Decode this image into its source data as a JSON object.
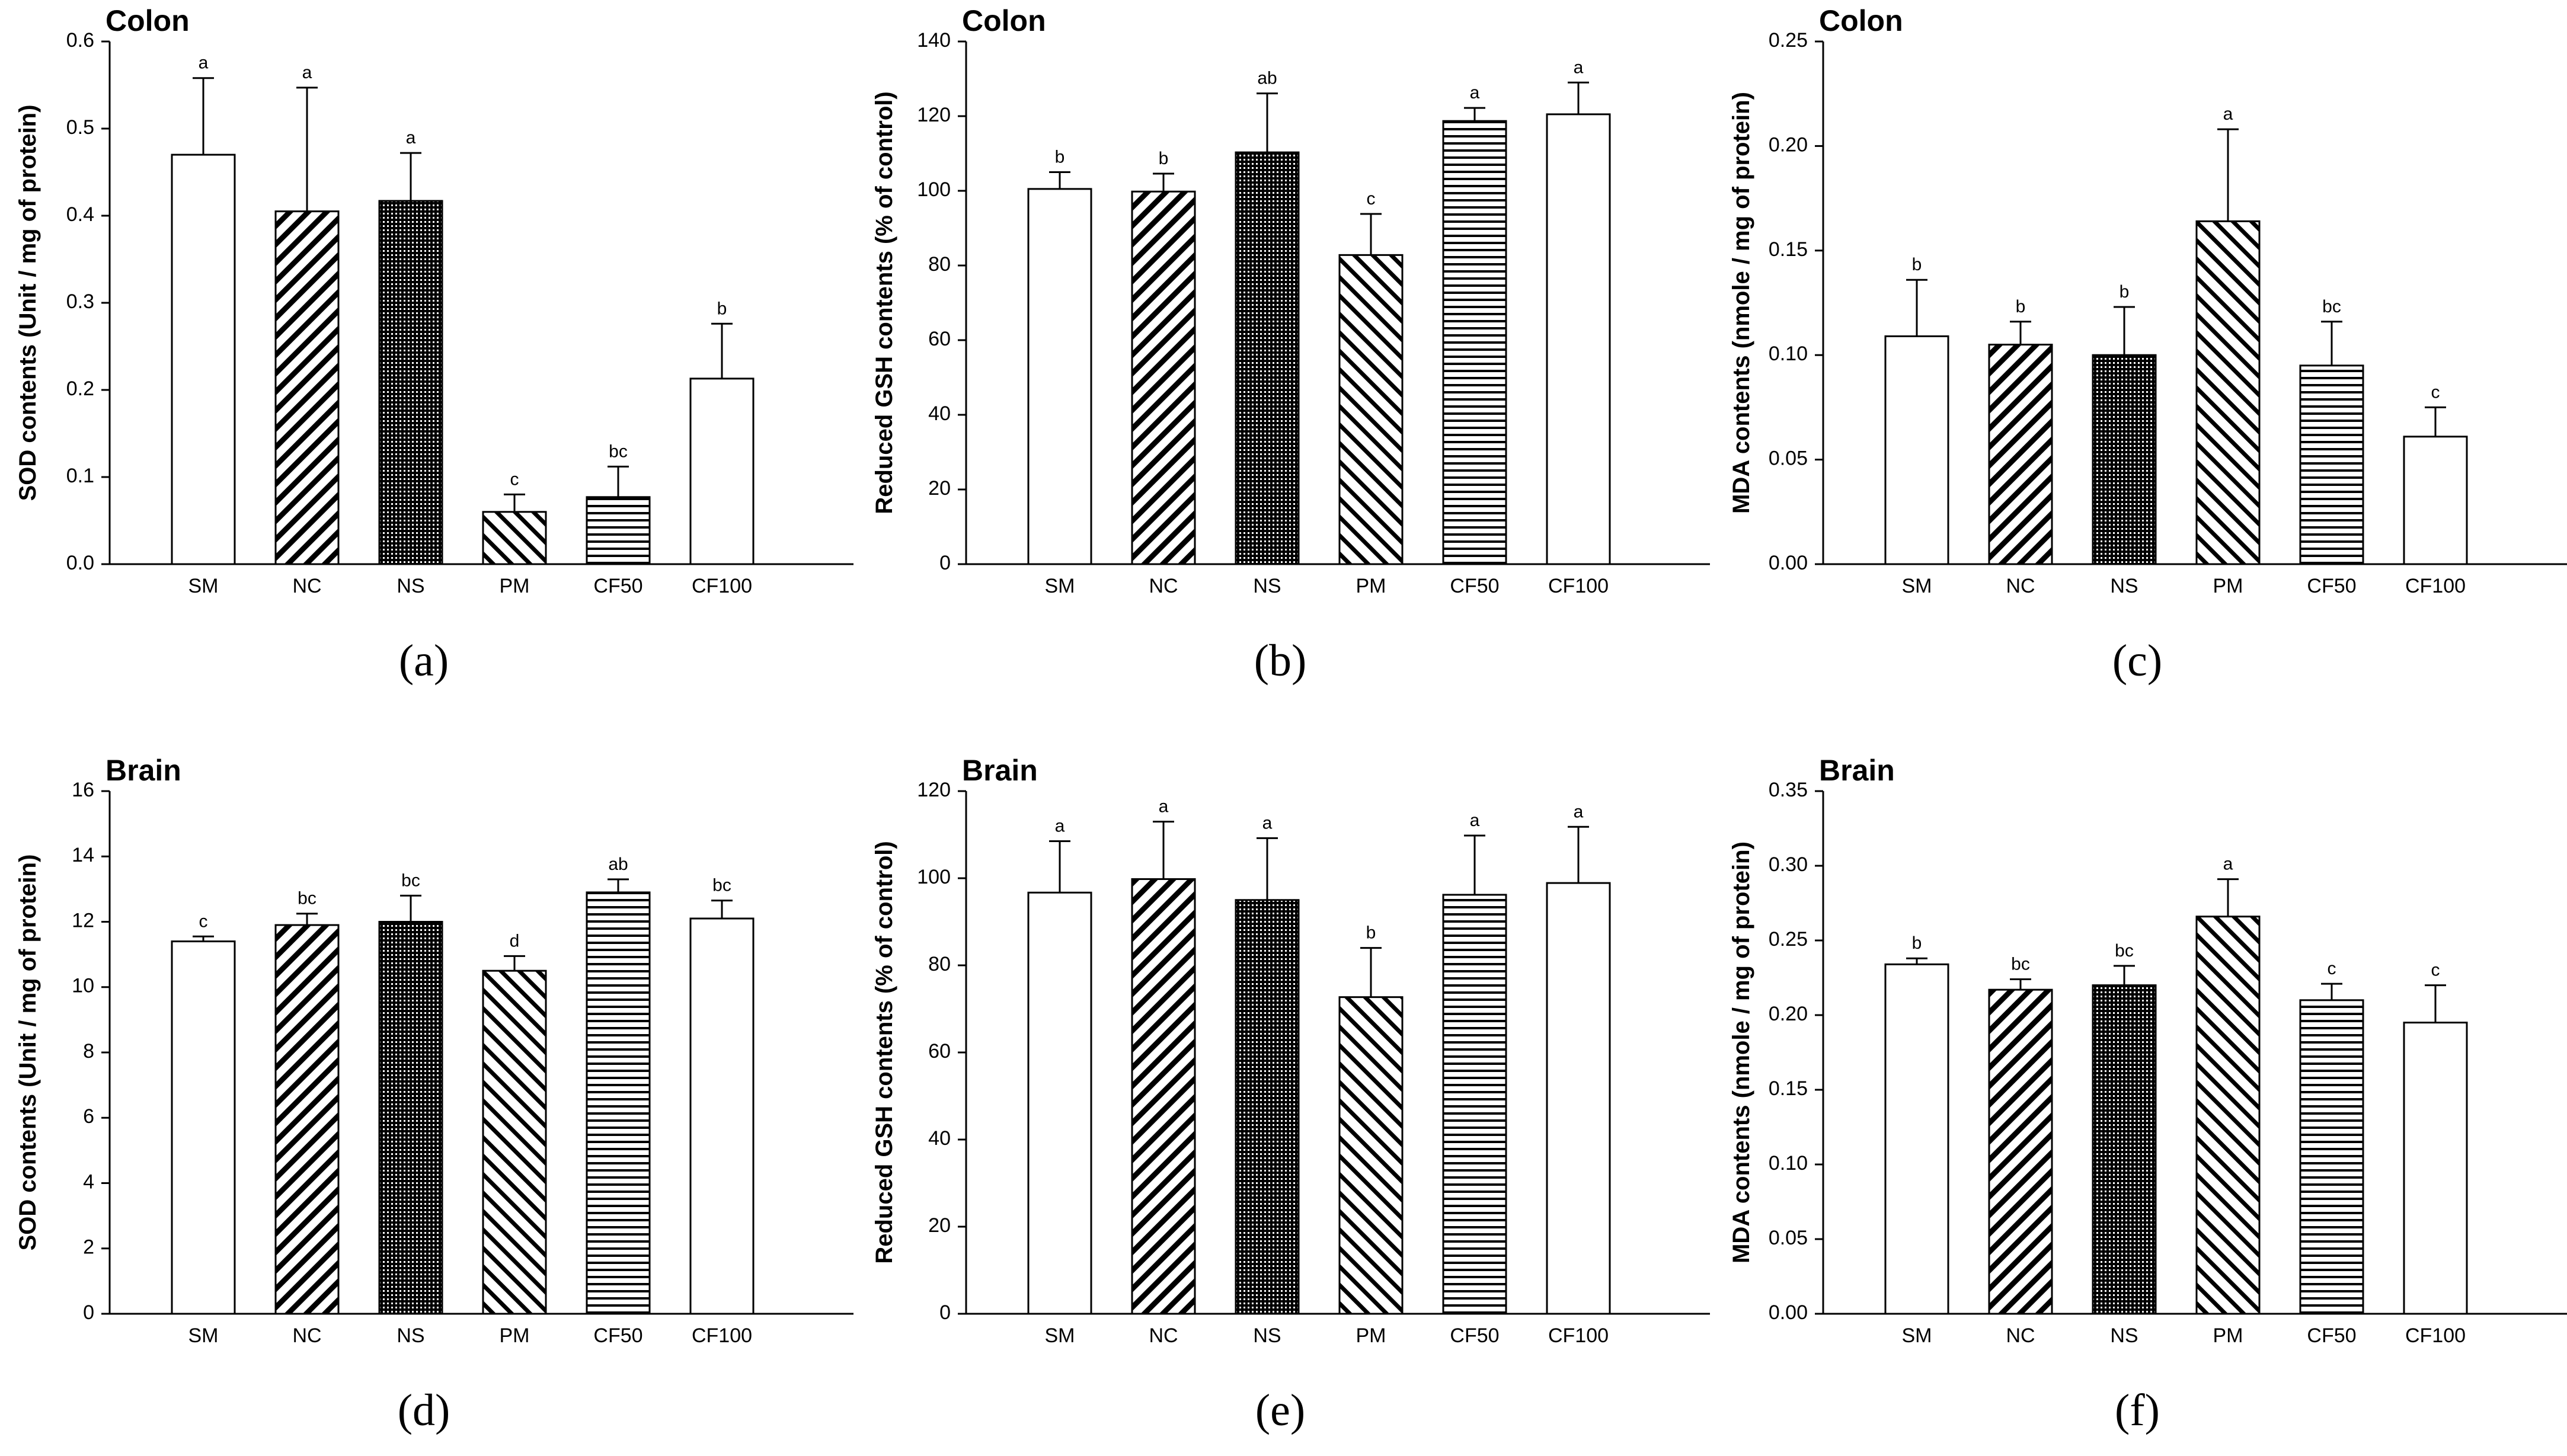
{
  "figure": {
    "background": "#ffffff",
    "bar_stroke": "#000000"
  },
  "chart_data": [
    {
      "id": "a",
      "type": "bar",
      "panel_label": "(a)",
      "title": "Colon",
      "ylabel": "SOD contents (Unit / mg of protein)",
      "xlabel": "",
      "ylim": [
        0,
        0.6
      ],
      "ytick_labels": [
        "0.0",
        "0.1",
        "0.2",
        "0.3",
        "0.4",
        "0.5",
        "0.6"
      ],
      "categories": [
        "SM",
        "NC",
        "NS",
        "PM",
        "CF50",
        "CF100"
      ],
      "patterns": [
        "none",
        "diag-fwd",
        "crosshatch",
        "diag-back",
        "horizontal",
        "none"
      ],
      "values": [
        0.47,
        0.405,
        0.417,
        0.06,
        0.077,
        0.213
      ],
      "errors": [
        0.088,
        0.142,
        0.055,
        0.02,
        0.035,
        0.063
      ],
      "letters": [
        "a",
        "a",
        "a",
        "c",
        "bc",
        "b"
      ]
    },
    {
      "id": "b",
      "type": "bar",
      "panel_label": "(b)",
      "title": "Colon",
      "ylabel": "Reduced GSH contents (% of control)",
      "xlabel": "",
      "ylim": [
        0,
        140
      ],
      "ytick_labels": [
        "0",
        "20",
        "40",
        "60",
        "80",
        "100",
        "120",
        "140"
      ],
      "categories": [
        "SM",
        "NC",
        "NS",
        "PM",
        "CF50",
        "CF100"
      ],
      "patterns": [
        "none",
        "diag-fwd",
        "crosshatch",
        "diag-back",
        "horizontal",
        "none"
      ],
      "values": [
        100.5,
        99.8,
        110.3,
        82.8,
        118.7,
        120.5
      ],
      "errors": [
        4.5,
        4.8,
        15.8,
        11.0,
        3.5,
        8.5
      ],
      "letters": [
        "b",
        "b",
        "ab",
        "c",
        "a",
        "a"
      ]
    },
    {
      "id": "c",
      "type": "bar",
      "panel_label": "(c)",
      "title": "Colon",
      "ylabel": "MDA contents (nmole / mg of protein)",
      "xlabel": "",
      "ylim": [
        0,
        0.25
      ],
      "ytick_labels": [
        "0.00",
        "0.05",
        "0.10",
        "0.15",
        "0.20",
        "0.25"
      ],
      "categories": [
        "SM",
        "NC",
        "NS",
        "PM",
        "CF50",
        "CF100"
      ],
      "patterns": [
        "none",
        "diag-fwd",
        "crosshatch",
        "diag-back",
        "horizontal",
        "none"
      ],
      "values": [
        0.109,
        0.105,
        0.1,
        0.164,
        0.095,
        0.061
      ],
      "errors": [
        0.027,
        0.011,
        0.023,
        0.044,
        0.021,
        0.014
      ],
      "letters": [
        "b",
        "b",
        "b",
        "a",
        "bc",
        "c"
      ]
    },
    {
      "id": "d",
      "type": "bar",
      "panel_label": "(d)",
      "title": "Brain",
      "ylabel": "SOD contents (Unit / mg of protein)",
      "xlabel": "",
      "ylim": [
        0,
        16
      ],
      "ytick_labels": [
        "0",
        "2",
        "4",
        "6",
        "8",
        "10",
        "12",
        "14",
        "16"
      ],
      "categories": [
        "SM",
        "NC",
        "NS",
        "PM",
        "CF50",
        "CF100"
      ],
      "patterns": [
        "none",
        "diag-fwd",
        "crosshatch",
        "diag-back",
        "horizontal",
        "none"
      ],
      "values": [
        11.4,
        11.9,
        12.0,
        10.5,
        12.9,
        12.1
      ],
      "errors": [
        0.15,
        0.35,
        0.8,
        0.45,
        0.4,
        0.55
      ],
      "letters": [
        "c",
        "bc",
        "bc",
        "d",
        "ab",
        "bc"
      ]
    },
    {
      "id": "e",
      "type": "bar",
      "panel_label": "(e)",
      "title": "Brain",
      "ylabel": "Reduced GSH contents (% of control)",
      "xlabel": "",
      "ylim": [
        0,
        120
      ],
      "ytick_labels": [
        "0",
        "20",
        "40",
        "60",
        "80",
        "100",
        "120"
      ],
      "categories": [
        "SM",
        "NC",
        "NS",
        "PM",
        "CF50",
        "CF100"
      ],
      "patterns": [
        "none",
        "diag-fwd",
        "crosshatch",
        "diag-back",
        "horizontal",
        "none"
      ],
      "values": [
        96.7,
        99.8,
        95.0,
        72.7,
        96.2,
        98.9
      ],
      "errors": [
        11.8,
        13.2,
        14.2,
        11.3,
        13.6,
        12.9
      ],
      "letters": [
        "a",
        "a",
        "a",
        "b",
        "a",
        "a"
      ]
    },
    {
      "id": "f",
      "type": "bar",
      "panel_label": "(f)",
      "title": "Brain",
      "ylabel": "MDA contents (nmole / mg of protein)",
      "xlabel": "",
      "ylim": [
        0,
        0.35
      ],
      "ytick_labels": [
        "0.00",
        "0.05",
        "0.10",
        "0.15",
        "0.20",
        "0.25",
        "0.30",
        "0.35"
      ],
      "categories": [
        "SM",
        "NC",
        "NS",
        "PM",
        "CF50",
        "CF100"
      ],
      "patterns": [
        "none",
        "diag-fwd",
        "crosshatch",
        "diag-back",
        "horizontal",
        "none"
      ],
      "values": [
        0.234,
        0.217,
        0.22,
        0.266,
        0.21,
        0.195
      ],
      "errors": [
        0.004,
        0.007,
        0.013,
        0.025,
        0.011,
        0.025
      ],
      "letters": [
        "b",
        "bc",
        "bc",
        "a",
        "c",
        "c"
      ]
    }
  ]
}
